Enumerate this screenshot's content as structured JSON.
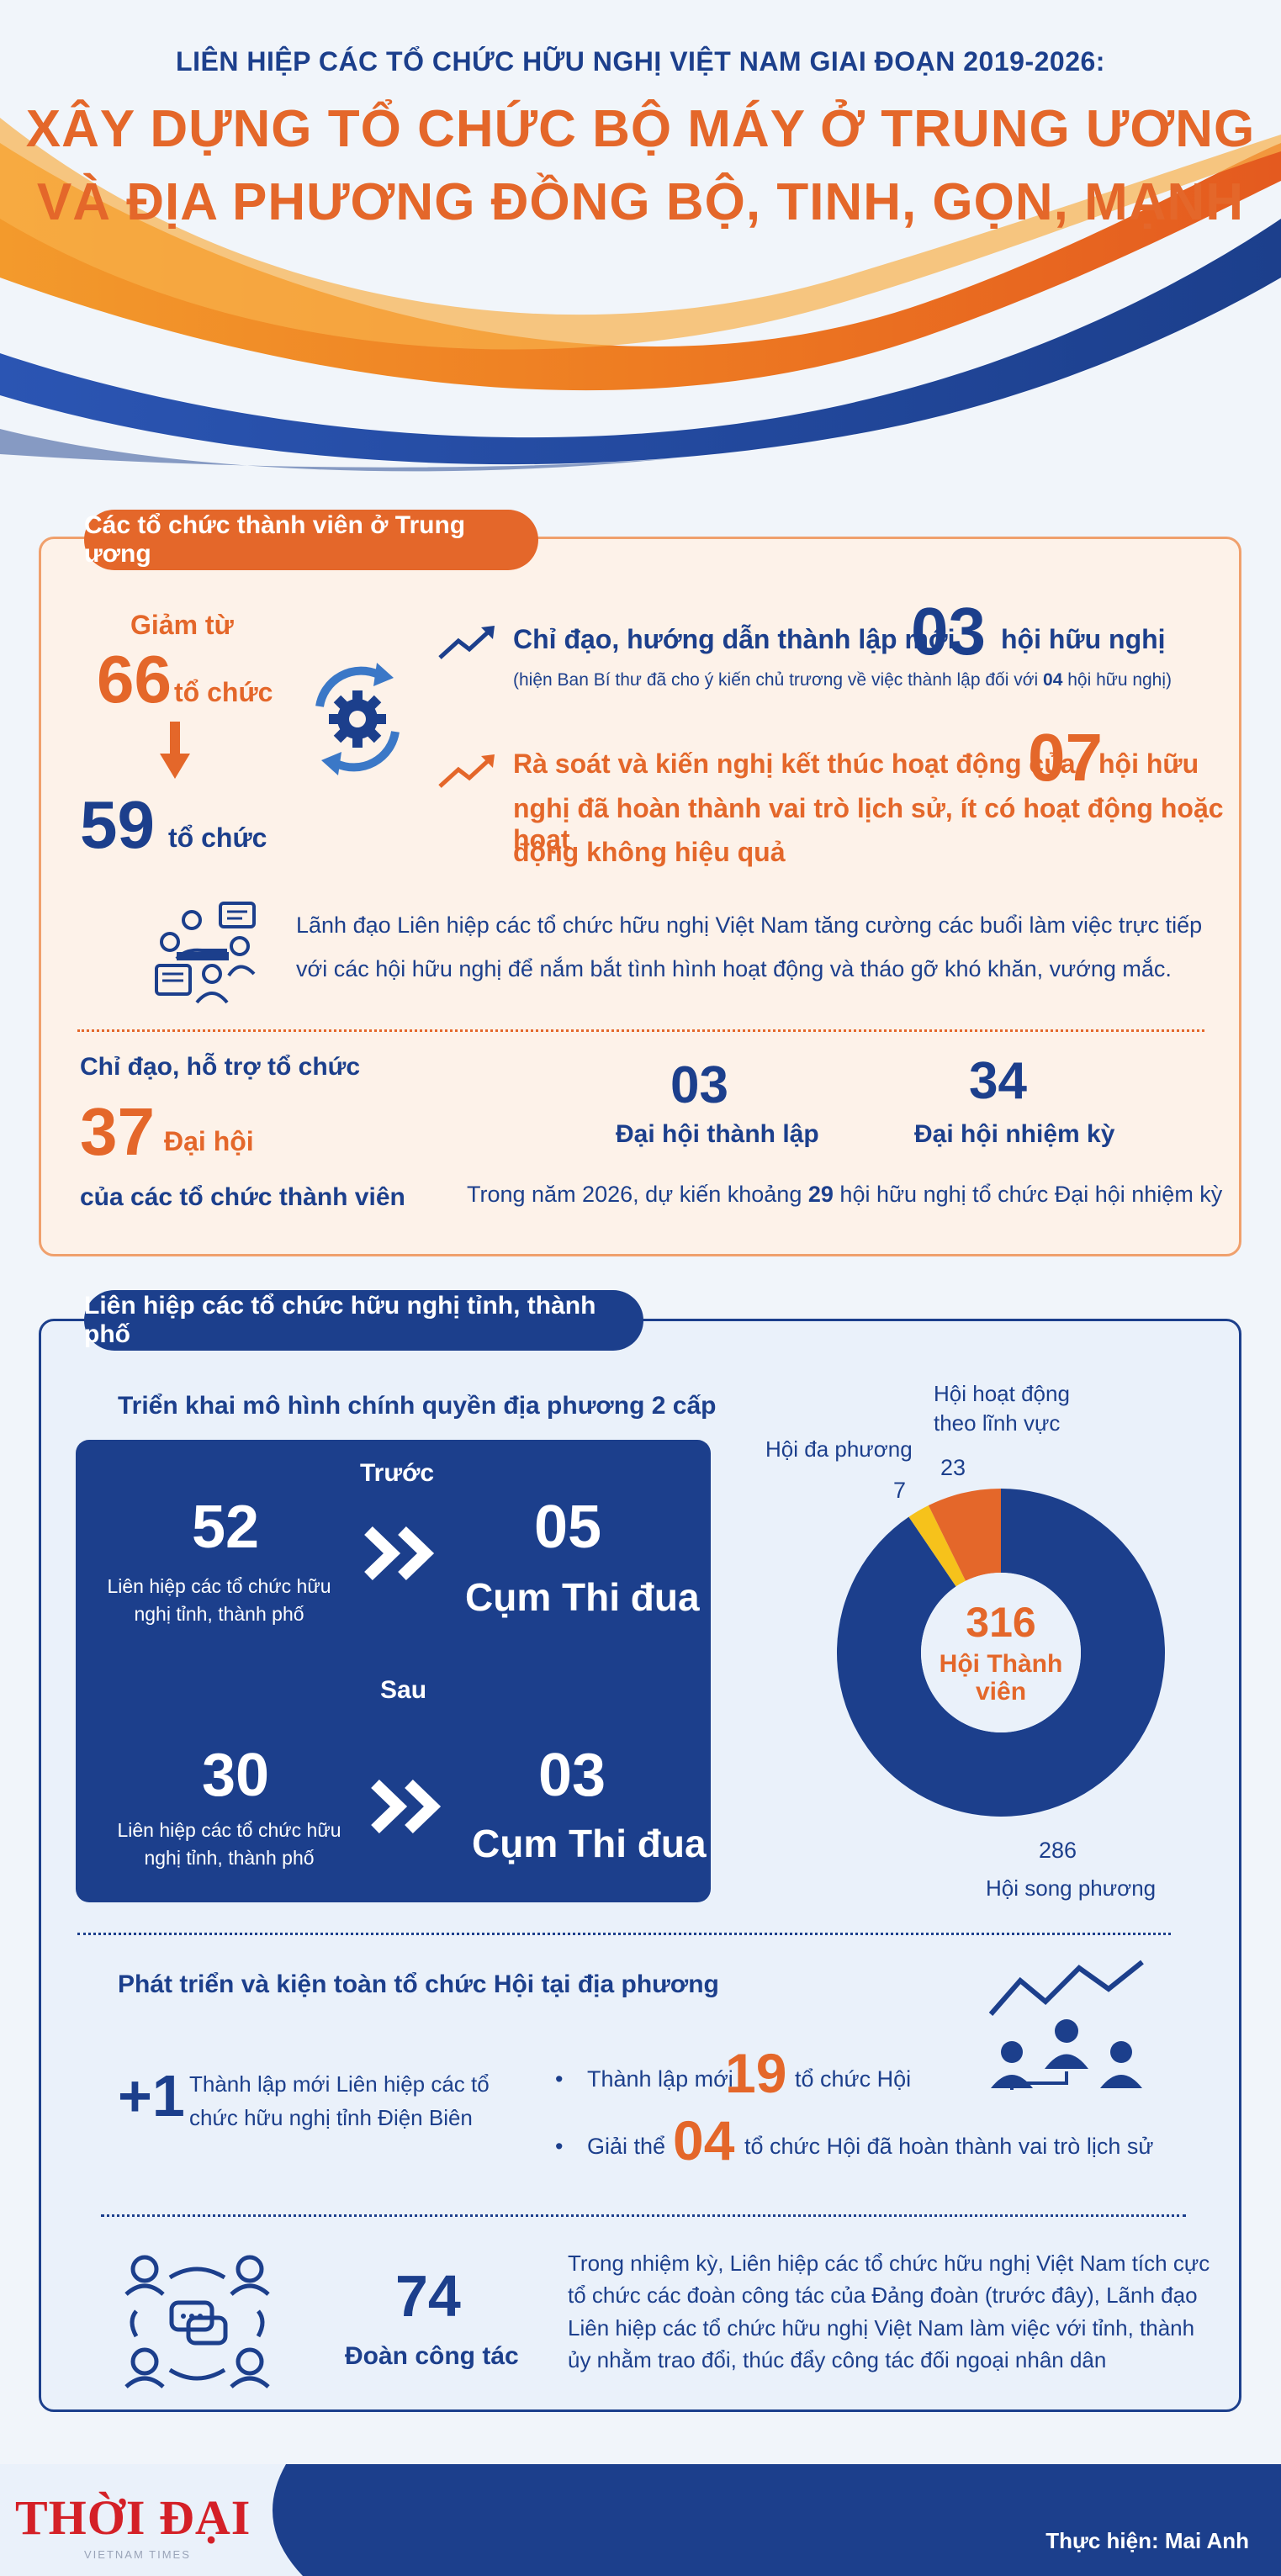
{
  "header": {
    "subtitle": "LIÊN HIỆP CÁC TỔ CHỨC HỮU NGHỊ VIỆT NAM GIAI ĐOẠN 2019-2026:",
    "title_line1": "XÂY DỰNG TỔ CHỨC BỘ MÁY Ở TRUNG ƯƠNG",
    "title_line2": "VÀ ĐỊA PHƯƠNG ĐỒNG BỘ, TINH, GỌN, MẠNH"
  },
  "central": {
    "section_label": "Các tổ chức thành viên ở Trung ương",
    "reduce_from_label": "Giảm từ",
    "from_value": "66",
    "from_unit": "tổ chức",
    "to_value": "59",
    "to_unit": "tổ chức",
    "item1_pre": "Chỉ đạo, hướng dẫn thành lập mới",
    "item1_value": "03",
    "item1_post": "hội hữu nghị",
    "item1_note_pre": "(hiện Ban Bí thư đã cho ý kiến chủ trương về việc thành lập đối với",
    "item1_note_value": "04",
    "item1_note_post": "hội hữu nghị)",
    "item2_pre": "Rà soát và kiến nghị kết thúc hoạt động của",
    "item2_value": "07",
    "item2_post": "hội hữu",
    "item2_line2": "nghị đã hoàn thành vai trò lịch sử, ít có hoạt động hoặc hoạt",
    "item2_line3": "động không hiệu quả",
    "meeting_line1": "Lãnh đạo Liên hiệp các tổ chức hữu nghị Việt Nam tăng cường các buổi làm việc trực tiếp",
    "meeting_line2": "với các hội hữu nghị để nắm bắt tình hình hoạt động và tháo gỡ khó khăn, vướng mắc.",
    "congress_label": "Chỉ đạo, hỗ trợ tổ chức",
    "congress_value": "37",
    "congress_unit": "Đại hội",
    "congress_sub": "của các tổ chức thành viên",
    "founding_value": "03",
    "founding_label": "Đại hội thành lập",
    "term_value": "34",
    "term_label": "Đại hội nhiệm kỳ",
    "plan_pre": "Trong năm 2026, dự kiến khoảng",
    "plan_value": "29",
    "plan_post": "hội hữu nghị tổ chức Đại hội nhiệm kỳ"
  },
  "local": {
    "section_label": "Liên hiệp các tổ chức hữu nghị tỉnh, thành phố",
    "model_title": "Triển khai mô hình chính quyền địa phương 2 cấp",
    "before_label": "Trước",
    "after_label": "Sau",
    "before_unions_value": "52",
    "before_unions_label_1": "Liên hiệp các tổ chức hữu",
    "before_unions_label_2": "nghị tỉnh, thành phố",
    "before_clusters_value": "05",
    "before_clusters_label": "Cụm Thi đua",
    "after_unions_value": "30",
    "after_unions_label_1": "Liên hiệp các tổ chức hữu",
    "after_unions_label_2": "nghị tỉnh, thành phố",
    "after_clusters_value": "03",
    "after_clusters_label": "Cụm Thi đua",
    "dev_title": "Phát triển và kiện toàn tổ chức Hội tại địa phương",
    "plus_value": "+1",
    "plus_text_1": "Thành lập mới Liên hiệp các tổ",
    "plus_text_2": "chức hữu nghị tỉnh Điện Biên",
    "new_pre": "Thành lập mới",
    "new_value": "19",
    "new_post": "tổ chức Hội",
    "dissolve_pre": "Giải thể",
    "dissolve_value": "04",
    "dissolve_post": "tổ chức Hội đã hoàn thành vai trò lịch sử",
    "delegation_value": "74",
    "delegation_label": "Đoàn công tác",
    "delegation_text_1": "Trong nhiệm kỳ, Liên hiệp các tổ chức hữu nghị Việt Nam tích cực",
    "delegation_text_2": "tổ chức các đoàn công tác của Đảng đoàn (trước đây), Lãnh đạo",
    "delegation_text_3": "Liên hiệp các tổ chức hữu nghị Việt Nam làm việc với tỉnh, thành",
    "delegation_text_4": "ủy nhằm trao đổi, thúc đẩy công tác đối ngoại nhân dân"
  },
  "chart_data": {
    "type": "pie",
    "center_value": "316",
    "center_label_1": "Hội Thành",
    "center_label_2": "viên",
    "slices": [
      {
        "name": "Hội song phương",
        "value": 286,
        "color": "#1c3f8c"
      },
      {
        "name": "Hội đa phương",
        "value": 7,
        "color": "#f6c21b"
      },
      {
        "name": "Hội hoạt động theo lĩnh vực",
        "value": 23,
        "color": "#e4672a"
      }
    ],
    "labels": {
      "bilateral": "Hội song phương",
      "multilateral": "Hội đa phương",
      "field_1": "Hội hoạt động",
      "field_2": "theo lĩnh vực"
    }
  },
  "footer": {
    "logo_text": "THỜI ĐẠI",
    "logo_sub": "VIETNAM TIMES",
    "credit": "Thực hiện: Mai Anh"
  },
  "colors": {
    "navy": "#1c3f8c",
    "orange": "#e4672a",
    "yellow": "#f6c21b",
    "cream": "#fdf2e9",
    "light_blue": "#eaf1fa",
    "logo_red": "#d42027"
  }
}
